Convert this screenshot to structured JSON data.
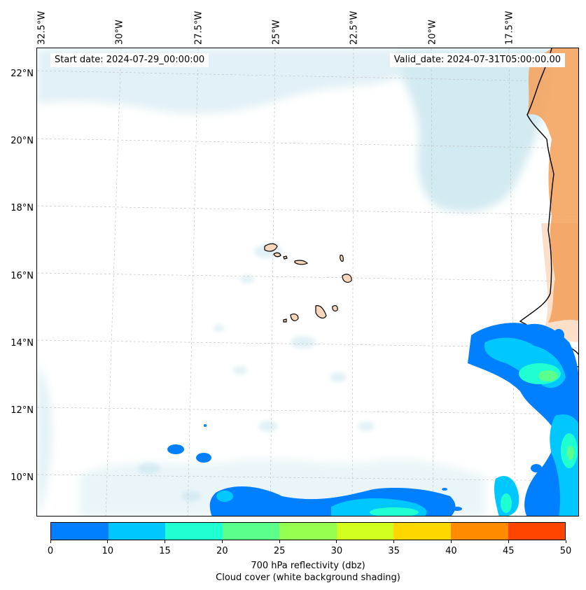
{
  "header": {
    "start_date": "Start date: 2024-07-29_00:00:00",
    "valid_date": "Valid_date: 2024-07-31T05:00:00.00"
  },
  "axes": {
    "lon_labels": [
      "32.5°W",
      "30°W",
      "27.5°W",
      "25°W",
      "22.5°W",
      "20°W",
      "17.5°W"
    ],
    "lat_labels": [
      "22°N",
      "20°N",
      "18°N",
      "16°N",
      "14°N",
      "12°N",
      "10°N"
    ]
  },
  "colorbar": {
    "ticks": [
      "0",
      "10",
      "15",
      "20",
      "25",
      "30",
      "35",
      "40",
      "45",
      "50"
    ],
    "colors": [
      "#0080ff",
      "#00c8ff",
      "#20ffd2",
      "#5aff8c",
      "#96ff50",
      "#d2ff1e",
      "#ffd700",
      "#ff8c00",
      "#ff4500"
    ],
    "label_line1": "700 hPa reflectivity (dbz)",
    "label_line2": "Cloud cover (white background shading)"
  },
  "layers": {
    "land_color": "#f4a460",
    "island_fill": "#f7d7bb",
    "cloud_color": "#add8e6"
  }
}
